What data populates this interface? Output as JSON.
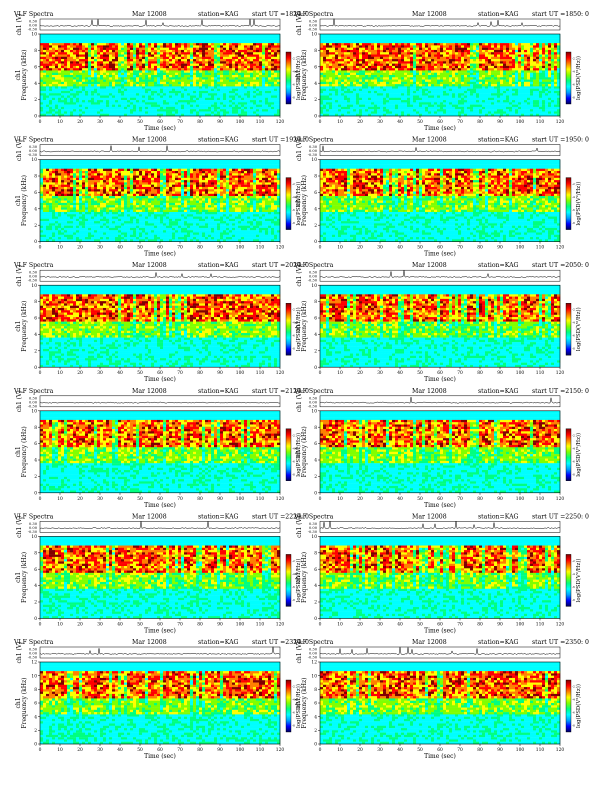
{
  "page": {
    "title_prefix": "VLF Spectra",
    "date": "Mar 12008",
    "station": "station=KAG",
    "start_label": "start  UT"
  },
  "labels": {
    "waveform_axis": "ch1 (V)",
    "freq_axis": "Frequency (kHz)",
    "channel": "ch1",
    "time_axis": "Time  (sec)",
    "colorbar": "log(PSD(V²/Hz))"
  },
  "colors": {
    "colormap": [
      "#00005a",
      "#0000ff",
      "#00a0ff",
      "#00ffff",
      "#00ff80",
      "#80ff00",
      "#ffff00",
      "#ff8000",
      "#ff0000",
      "#800000"
    ]
  },
  "chart_data": [
    {
      "type": "heatmap",
      "start_ut": "=1820: 0",
      "x": {
        "label": "Time  (sec)",
        "range": [
          0,
          120
        ],
        "ticks": [
          0,
          10,
          20,
          30,
          40,
          50,
          60,
          70,
          80,
          90,
          100,
          110,
          120
        ]
      },
      "y": {
        "label": "Frequency (kHz)",
        "range": [
          0,
          10
        ],
        "ticks": [
          0,
          2,
          4,
          6,
          8,
          10
        ]
      },
      "waveform": {
        "label": "ch1 (V)",
        "ticks": [
          "0.30",
          "0.00",
          "-0.30"
        ]
      },
      "colorbar": {
        "label": "log(PSD(V²/Hz))",
        "ticks": [
          "-2",
          "-4",
          "-6",
          "-8"
        ]
      },
      "grid": false,
      "legend": "right"
    },
    {
      "type": "heatmap",
      "start_ut": "=1850: 0",
      "x": {
        "label": "Time  (sec)",
        "range": [
          0,
          120
        ],
        "ticks": [
          0,
          10,
          20,
          30,
          40,
          50,
          60,
          70,
          80,
          90,
          100,
          110,
          120
        ]
      },
      "y": {
        "label": "Frequency (kHz)",
        "range": [
          0,
          10
        ],
        "ticks": [
          0,
          2,
          4,
          6,
          8,
          10
        ]
      },
      "waveform": {
        "label": "ch1 (V)",
        "ticks": [
          "0.30",
          "0.00",
          "-0.30"
        ]
      },
      "colorbar": {
        "label": "log(PSD(V²/Hz))",
        "ticks": [
          "-2",
          "-4",
          "-6",
          "-8"
        ]
      },
      "grid": false,
      "legend": "right"
    },
    {
      "type": "heatmap",
      "start_ut": "=1920: 0",
      "x": {
        "label": "Time  (sec)",
        "range": [
          0,
          120
        ],
        "ticks": [
          0,
          10,
          20,
          30,
          40,
          50,
          60,
          70,
          80,
          90,
          100,
          110,
          120
        ]
      },
      "y": {
        "label": "Frequency (kHz)",
        "range": [
          0,
          10
        ],
        "ticks": [
          0,
          2,
          4,
          6,
          8,
          10
        ]
      },
      "waveform": {
        "label": "ch1 (V)",
        "ticks": [
          "0.30",
          "0.00",
          "-0.30"
        ]
      },
      "colorbar": {
        "label": "log(PSD(V²/Hz))",
        "ticks": [
          "-2",
          "-4",
          "-6",
          "-8"
        ]
      },
      "grid": false,
      "legend": "right"
    },
    {
      "type": "heatmap",
      "start_ut": "=1950: 0",
      "x": {
        "label": "Time  (sec)",
        "range": [
          0,
          120
        ],
        "ticks": [
          0,
          10,
          20,
          30,
          40,
          50,
          60,
          70,
          80,
          90,
          100,
          110,
          120
        ]
      },
      "y": {
        "label": "Frequency (kHz)",
        "range": [
          0,
          10
        ],
        "ticks": [
          0,
          2,
          4,
          6,
          8,
          10
        ]
      },
      "waveform": {
        "label": "ch1 (V)",
        "ticks": [
          "0.30",
          "0.00",
          "-0.30"
        ]
      },
      "colorbar": {
        "label": "log(PSD(V²/Hz))",
        "ticks": [
          "-2",
          "-4",
          "-6",
          "-8"
        ]
      },
      "grid": false,
      "legend": "right"
    },
    {
      "type": "heatmap",
      "start_ut": "=2020: 0",
      "x": {
        "label": "Time  (sec)",
        "range": [
          0,
          120
        ],
        "ticks": [
          0,
          10,
          20,
          30,
          40,
          50,
          60,
          70,
          80,
          90,
          100,
          110,
          120
        ]
      },
      "y": {
        "label": "Frequency (kHz)",
        "range": [
          0,
          10
        ],
        "ticks": [
          0,
          2,
          4,
          6,
          8,
          10
        ]
      },
      "waveform": {
        "label": "ch1 (V)",
        "ticks": [
          "0.30",
          "0.00",
          "-0.30"
        ]
      },
      "colorbar": {
        "label": "log(PSD(V²/Hz))",
        "ticks": [
          "-2",
          "-4",
          "-6",
          "-8"
        ]
      },
      "grid": false,
      "legend": "right"
    },
    {
      "type": "heatmap",
      "start_ut": "=2050: 0",
      "x": {
        "label": "Time  (sec)",
        "range": [
          0,
          120
        ],
        "ticks": [
          0,
          10,
          20,
          30,
          40,
          50,
          60,
          70,
          80,
          90,
          100,
          110,
          120
        ]
      },
      "y": {
        "label": "Frequency (kHz)",
        "range": [
          0,
          10
        ],
        "ticks": [
          0,
          2,
          4,
          6,
          8,
          10
        ]
      },
      "waveform": {
        "label": "ch1 (V)",
        "ticks": [
          "0.30",
          "0.00",
          "-0.30"
        ]
      },
      "colorbar": {
        "label": "log(PSD(V²/Hz))",
        "ticks": [
          "-2",
          "-4",
          "-6",
          "-8"
        ]
      },
      "grid": false,
      "legend": "right"
    },
    {
      "type": "heatmap",
      "start_ut": "=2120: 0",
      "x": {
        "label": "Time  (sec)",
        "range": [
          0,
          120
        ],
        "ticks": [
          0,
          10,
          20,
          30,
          40,
          50,
          60,
          70,
          80,
          90,
          100,
          110,
          120
        ]
      },
      "y": {
        "label": "Frequency (kHz)",
        "range": [
          0,
          10
        ],
        "ticks": [
          0,
          2,
          4,
          6,
          8,
          10
        ]
      },
      "waveform": {
        "label": "ch1 (V)",
        "ticks": [
          "0.30",
          "0.00",
          "-0.30"
        ]
      },
      "colorbar": {
        "label": "log(PSD(V²/Hz))",
        "ticks": [
          "-2",
          "-4",
          "-6",
          "-8"
        ]
      },
      "grid": false,
      "legend": "right"
    },
    {
      "type": "heatmap",
      "start_ut": "=2150: 0",
      "x": {
        "label": "Time  (sec)",
        "range": [
          0,
          120
        ],
        "ticks": [
          0,
          10,
          20,
          30,
          40,
          50,
          60,
          70,
          80,
          90,
          100,
          110,
          120
        ]
      },
      "y": {
        "label": "Frequency (kHz)",
        "range": [
          0,
          10
        ],
        "ticks": [
          0,
          2,
          4,
          6,
          8,
          10
        ]
      },
      "waveform": {
        "label": "ch1 (V)",
        "ticks": [
          "0.30",
          "0.00",
          "-0.30"
        ]
      },
      "colorbar": {
        "label": "log(PSD(V²/Hz))",
        "ticks": [
          "-2",
          "-4",
          "-6",
          "-8"
        ]
      },
      "grid": false,
      "legend": "right"
    },
    {
      "type": "heatmap",
      "start_ut": "=2220: 0",
      "x": {
        "label": "Time  (sec)",
        "range": [
          0,
          120
        ],
        "ticks": [
          0,
          10,
          20,
          30,
          40,
          50,
          60,
          70,
          80,
          90,
          100,
          110,
          120
        ]
      },
      "y": {
        "label": "Frequency (kHz)",
        "range": [
          0,
          10
        ],
        "ticks": [
          0,
          2,
          4,
          6,
          8,
          10
        ]
      },
      "waveform": {
        "label": "ch1 (V)",
        "ticks": [
          "0.30",
          "0.00",
          "-0.30"
        ]
      },
      "colorbar": {
        "label": "log(PSD(V²/Hz))",
        "ticks": [
          "-2",
          "-4",
          "-6",
          "-8"
        ]
      },
      "grid": false,
      "legend": "right"
    },
    {
      "type": "heatmap",
      "start_ut": "=2250: 0",
      "x": {
        "label": "Time  (sec)",
        "range": [
          0,
          120
        ],
        "ticks": [
          0,
          10,
          20,
          30,
          40,
          50,
          60,
          70,
          80,
          90,
          100,
          110,
          120
        ]
      },
      "y": {
        "label": "Frequency (kHz)",
        "range": [
          0,
          10
        ],
        "ticks": [
          0,
          2,
          4,
          6,
          8,
          10
        ]
      },
      "waveform": {
        "label": "ch1 (V)",
        "ticks": [
          "0.30",
          "0.00",
          "-0.30"
        ]
      },
      "colorbar": {
        "label": "log(PSD(V²/Hz))",
        "ticks": [
          "-2",
          "-4",
          "-6",
          "-8"
        ]
      },
      "grid": false,
      "legend": "right"
    },
    {
      "type": "heatmap",
      "start_ut": "=2320: 0",
      "x": {
        "label": "Time  (sec)",
        "range": [
          0,
          120
        ],
        "ticks": [
          0,
          10,
          20,
          30,
          40,
          50,
          60,
          70,
          80,
          90,
          100,
          110,
          120
        ]
      },
      "y": {
        "label": "Frequency (kHz)",
        "range": [
          0,
          12
        ],
        "ticks": [
          0,
          2,
          4,
          6,
          8,
          10,
          12
        ]
      },
      "waveform": {
        "label": "ch1 (V)",
        "ticks": [
          "0.30",
          "0.00",
          "-0.30"
        ]
      },
      "colorbar": {
        "label": "log(PSD(V²/Hz))",
        "ticks": [
          "-2",
          "-4",
          "-6",
          "-8"
        ]
      },
      "grid": false,
      "legend": "right"
    },
    {
      "type": "heatmap",
      "start_ut": "=2350: 0",
      "x": {
        "label": "Time  (sec)",
        "range": [
          0,
          120
        ],
        "ticks": [
          0,
          10,
          20,
          30,
          40,
          50,
          60,
          70,
          80,
          90,
          100,
          110,
          120
        ]
      },
      "y": {
        "label": "Frequency (kHz)",
        "range": [
          0,
          12
        ],
        "ticks": [
          0,
          2,
          4,
          6,
          8,
          10,
          12
        ]
      },
      "waveform": {
        "label": "ch1 (V)",
        "ticks": [
          "0.30",
          "0.00",
          "-0.30"
        ]
      },
      "colorbar": {
        "label": "log(PSD(V²/Hz))",
        "ticks": [
          "-2",
          "-4",
          "-6",
          "-8"
        ]
      },
      "grid": false,
      "legend": "right"
    }
  ]
}
